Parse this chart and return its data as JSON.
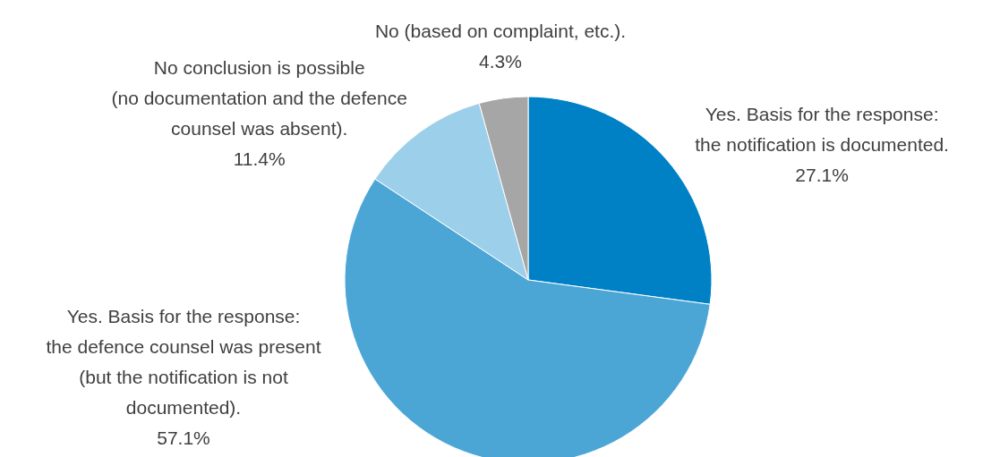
{
  "chart_data": {
    "type": "pie",
    "categories": [
      "Yes. Basis for the response:\nthe notification is documented.",
      "Yes. Basis for the response:\nthe defence counsel was present\n(but the notification is not\ndocumented).",
      "No conclusion is possible\n(no documentation and the defence\ncounsel was absent).",
      "No (based on complaint, etc.)."
    ],
    "values": [
      27.1,
      57.1,
      11.4,
      4.3
    ],
    "colors": [
      "#0081c6",
      "#4ba6d6",
      "#9bcfea",
      "#a6a6a6"
    ],
    "value_labels": [
      "27.1%",
      "57.1%",
      "11.4%",
      "4.3%"
    ]
  }
}
